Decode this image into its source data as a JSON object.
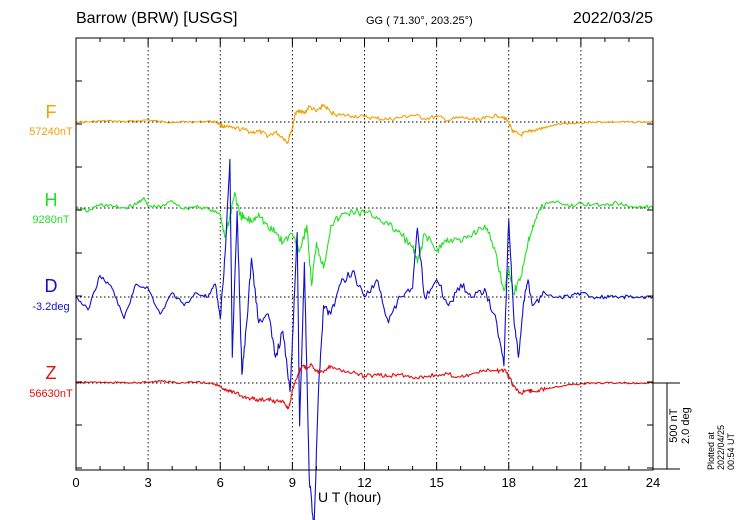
{
  "header": {
    "station": "Barrow (BRW)  [USGS]",
    "coords": "GG ( 71.30°, 203.25°)",
    "date": "2022/03/25"
  },
  "footer": {
    "plotted": "Plotted at 2022/04/25 00:54 UT"
  },
  "scale": {
    "line1": "500 nT",
    "line2": "2.0 deg"
  },
  "chart_data": {
    "type": "line",
    "xlabel": "U T (hour)",
    "xlim": [
      0,
      24
    ],
    "xticks": [
      "0",
      "3",
      "6",
      "9",
      "12",
      "15",
      "18",
      "21",
      "24"
    ],
    "grid": true,
    "scale_nT_per_bar": 500,
    "scale_deg_per_bar": 2.0,
    "series": [
      {
        "name": "F",
        "baseline_label": "57240nT",
        "color": "#f0a000",
        "x": [
          0,
          0.5,
          1,
          1.5,
          2,
          2.5,
          3,
          3.5,
          4,
          4.5,
          5,
          5.5,
          5.8,
          6,
          6.2,
          6.5,
          7,
          7.3,
          7.6,
          8,
          8.3,
          8.6,
          8.8,
          8.9,
          9,
          9.1,
          9.3,
          9.5,
          9.7,
          10,
          10.3,
          10.6,
          11,
          11.5,
          12,
          12.5,
          13,
          13.5,
          14,
          14.5,
          15,
          15.5,
          16,
          16.5,
          17,
          17.5,
          17.8,
          18,
          18.2,
          18.5,
          18.8,
          19,
          19.3,
          19.6,
          20,
          20.5,
          21,
          21.5,
          22,
          22.5,
          23,
          23.5,
          24
        ],
        "y": [
          0,
          0,
          5,
          5,
          2,
          5,
          12,
          2,
          -2,
          2,
          0,
          5,
          0,
          -15,
          -30,
          -35,
          -45,
          -60,
          -55,
          -80,
          -60,
          -90,
          -120,
          -70,
          -40,
          40,
          70,
          50,
          90,
          60,
          100,
          55,
          40,
          35,
          30,
          20,
          15,
          25,
          40,
          20,
          30,
          10,
          25,
          15,
          20,
          40,
          30,
          -5,
          -60,
          -75,
          -60,
          -50,
          -40,
          -30,
          -15,
          -8,
          -5,
          0,
          0,
          0,
          0,
          0,
          0
        ]
      },
      {
        "name": "H",
        "baseline_label": "9280nT",
        "color": "#22e022",
        "x": [
          0,
          0.5,
          1,
          1.5,
          2,
          2.5,
          2.8,
          3,
          3.5,
          4,
          4.5,
          5,
          5.5,
          6,
          6.2,
          6.4,
          6.6,
          6.8,
          7,
          7.3,
          7.6,
          8,
          8.3,
          8.6,
          9,
          9.3,
          9.6,
          9.8,
          10,
          10.3,
          10.6,
          11,
          11.5,
          12,
          12.5,
          13,
          13.5,
          14,
          14.2,
          14.5,
          15,
          15.3,
          15.6,
          16,
          16.5,
          17,
          17.4,
          17.8,
          18,
          18.2,
          18.5,
          18.8,
          19,
          19.3,
          19.6,
          20,
          20.5,
          21,
          21.5,
          22,
          22.5,
          23,
          23.5,
          24
        ],
        "y": [
          0,
          -20,
          20,
          10,
          0,
          20,
          60,
          10,
          5,
          40,
          -5,
          10,
          -5,
          -40,
          -170,
          -50,
          90,
          -40,
          -60,
          -80,
          -30,
          -120,
          -140,
          -200,
          -150,
          -250,
          -100,
          -450,
          -200,
          -350,
          -100,
          -50,
          -20,
          -30,
          -50,
          -100,
          -150,
          -230,
          -320,
          -150,
          -250,
          -200,
          -180,
          -200,
          -150,
          -100,
          -230,
          -480,
          -350,
          -500,
          -400,
          -200,
          -100,
          -10,
          30,
          40,
          10,
          25,
          20,
          15,
          30,
          5,
          10,
          0
        ]
      },
      {
        "name": "D",
        "baseline_label": "-3.2deg",
        "color": "#1010cc",
        "x": [
          0,
          0.5,
          1,
          1.5,
          2,
          2.5,
          3,
          3.5,
          4,
          4.5,
          5,
          5.5,
          5.8,
          6,
          6.2,
          6.4,
          6.5,
          6.7,
          6.9,
          7.1,
          7.3,
          7.6,
          8,
          8.3,
          8.6,
          8.9,
          9,
          9.2,
          9.3,
          9.5,
          9.7,
          9.9,
          10.1,
          10.3,
          10.6,
          11,
          11.5,
          12,
          12.5,
          13,
          13.5,
          14,
          14.2,
          14.5,
          15,
          15.5,
          16,
          16.5,
          17,
          17.5,
          17.8,
          18,
          18.2,
          18.4,
          18.6,
          18.8,
          19,
          19.5,
          20,
          20.5,
          21,
          21.5,
          22,
          22.5,
          23,
          23.5,
          24
        ],
        "y": [
          0,
          -0.3,
          0.5,
          0.2,
          -0.5,
          0.3,
          0.2,
          -0.4,
          0.1,
          -0.2,
          0.1,
          0.0,
          0.3,
          -0.5,
          1.0,
          3.2,
          -1.4,
          2.0,
          -1.8,
          -0.6,
          0.9,
          -0.6,
          -0.4,
          -1.4,
          -0.8,
          -2.2,
          -1.0,
          1.5,
          -3.0,
          0.8,
          -4.2,
          -5.4,
          -2.0,
          -0.2,
          -0.4,
          0.3,
          0.6,
          0.0,
          0.4,
          -0.6,
          0.0,
          0.2,
          1.6,
          0.0,
          0.4,
          -0.2,
          0.3,
          0.0,
          0.2,
          -0.6,
          -1.6,
          1.8,
          -0.4,
          -1.4,
          -0.2,
          0.4,
          -0.2,
          0.1,
          0.0,
          0.0,
          0.1,
          0.0,
          0.0,
          0.0,
          0.0,
          0.0,
          0.0
        ]
      },
      {
        "name": "Z",
        "baseline_label": "56630nT",
        "color": "#e01010",
        "x": [
          0,
          0.5,
          1,
          1.5,
          2,
          2.5,
          3,
          3.5,
          4,
          4.5,
          5,
          5.5,
          5.8,
          6,
          6.3,
          6.6,
          7,
          7.3,
          7.6,
          8,
          8.3,
          8.6,
          8.8,
          8.9,
          9,
          9.2,
          9.4,
          9.6,
          9.8,
          10,
          10.3,
          10.6,
          11,
          11.5,
          12,
          12.5,
          13,
          13.5,
          14,
          14.5,
          15,
          15.5,
          16,
          16.5,
          17,
          17.5,
          17.8,
          18,
          18.2,
          18.5,
          18.8,
          19,
          19.3,
          19.6,
          20,
          20.5,
          21,
          21.5,
          22,
          22.5,
          23,
          23.5,
          24
        ],
        "y": [
          0,
          5,
          5,
          0,
          5,
          0,
          5,
          10,
          5,
          0,
          5,
          0,
          -10,
          -20,
          -40,
          -60,
          -80,
          -90,
          -100,
          -90,
          -110,
          -100,
          -150,
          -120,
          -40,
          30,
          100,
          90,
          110,
          70,
          60,
          100,
          75,
          60,
          40,
          45,
          40,
          50,
          30,
          40,
          45,
          50,
          35,
          55,
          70,
          70,
          75,
          40,
          -20,
          -60,
          -40,
          -50,
          -40,
          -30,
          -20,
          -10,
          -5,
          0,
          0,
          0,
          0,
          0,
          0
        ]
      }
    ]
  }
}
